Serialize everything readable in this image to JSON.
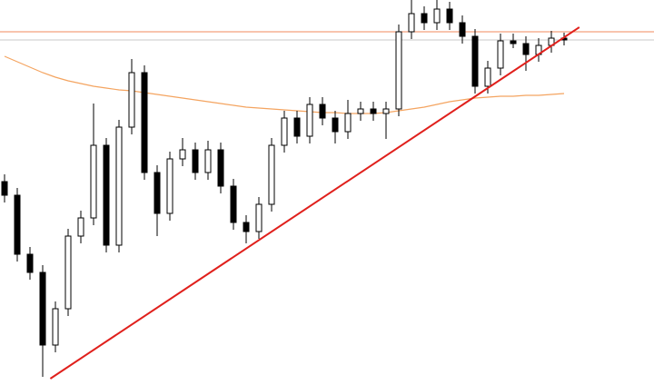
{
  "chart_data": {
    "type": "candlestick",
    "ylim": [
      0,
      424
    ],
    "up_color": "#ffffff",
    "down_color": "#000000",
    "outline_color": "#000000",
    "open": [
      224,
      209,
      144,
      124,
      44,
      84,
      164,
      184,
      264,
      154,
      284,
      344,
      234,
      189,
      249,
      259,
      234,
      259,
      219,
      179,
      169,
      199,
      264,
      294,
      274,
      309,
      294,
      279,
      299,
      304,
      299,
      304,
      389,
      409,
      399,
      414,
      399,
      384,
      329,
      349,
      379,
      376,
      364,
      374,
      382
    ],
    "high": [
      232,
      217,
      152,
      132,
      92,
      172,
      192,
      310,
      272,
      292,
      359,
      352,
      242,
      257,
      272,
      267,
      269,
      267,
      227,
      187,
      207,
      272,
      302,
      302,
      317,
      317,
      302,
      314,
      312,
      312,
      312,
      397,
      424,
      417,
      424,
      422,
      407,
      392,
      357,
      387,
      387,
      384,
      382,
      390,
      388
    ],
    "low": [
      201,
      136,
      116,
      9,
      36,
      76,
      156,
      176,
      146,
      146,
      276,
      226,
      164,
      181,
      241,
      226,
      226,
      211,
      171,
      156,
      161,
      191,
      256,
      266,
      266,
      286,
      266,
      271,
      291,
      291,
      271,
      296,
      381,
      391,
      391,
      391,
      376,
      321,
      321,
      341,
      371,
      346,
      356,
      366,
      374
    ],
    "close": [
      209,
      144,
      124,
      44,
      84,
      164,
      184,
      264,
      154,
      284,
      344,
      234,
      189,
      249,
      259,
      234,
      259,
      219,
      179,
      169,
      199,
      264,
      294,
      274,
      309,
      294,
      279,
      299,
      304,
      299,
      304,
      389,
      409,
      399,
      414,
      399,
      384,
      329,
      349,
      379,
      376,
      364,
      374,
      382,
      380
    ],
    "moving_average": {
      "color": "#f4a460",
      "values": [
        362,
        356,
        350,
        344,
        339,
        335,
        332,
        329,
        327,
        325,
        324,
        322,
        320,
        318,
        316,
        314,
        312,
        310,
        308,
        306,
        305,
        304,
        303,
        302,
        301,
        300,
        300,
        299,
        299,
        299,
        300,
        302,
        304,
        306,
        309,
        312,
        314,
        316,
        317,
        318,
        318,
        319,
        319,
        320,
        321
      ]
    },
    "hlines": [
      {
        "value": 389,
        "color": "#f08a5d"
      },
      {
        "value": 380,
        "color": "#c8c8c8"
      }
    ],
    "trendline": {
      "x": [
        3.6,
        45.2
      ],
      "values": [
        7,
        394
      ],
      "color": "#e0201c"
    }
  }
}
